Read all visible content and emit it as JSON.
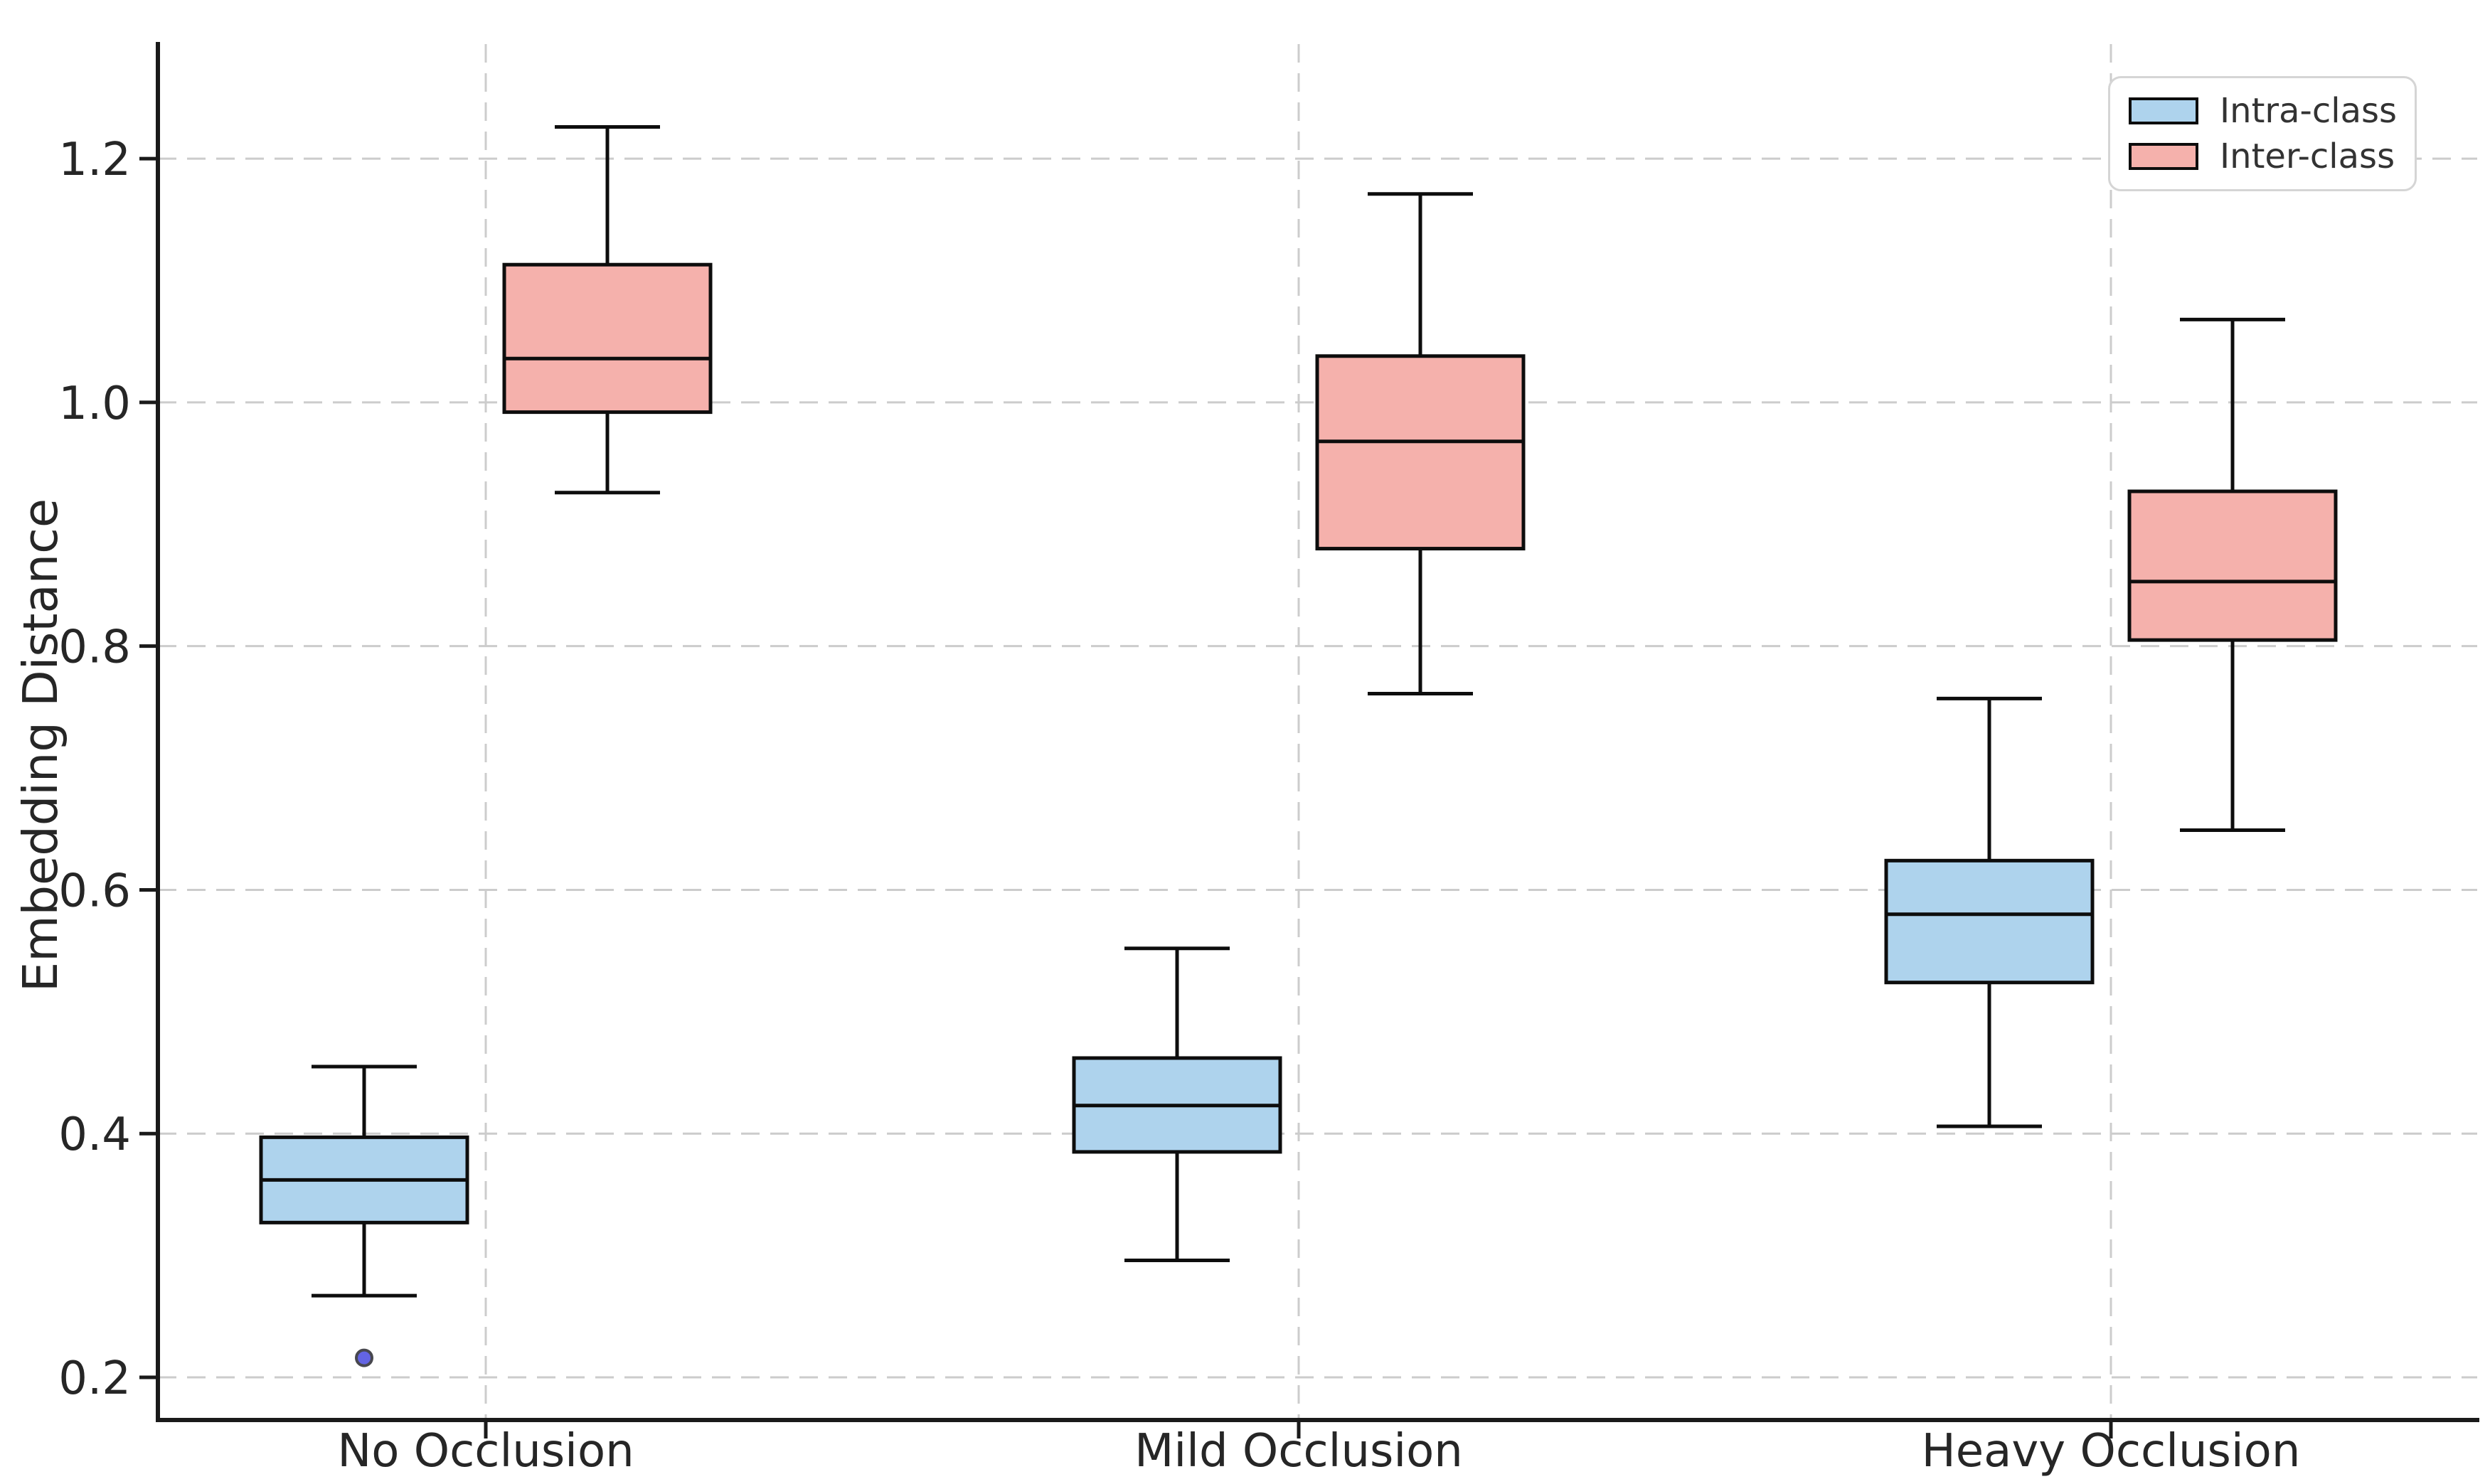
{
  "chart_data": {
    "type": "boxplot",
    "title": "",
    "xlabel": "",
    "ylabel": "Embedding Distance",
    "categories": [
      "No Occlusion",
      "Mild Occlusion",
      "Heavy Occlusion"
    ],
    "yticks": [
      0.2,
      0.4,
      0.6,
      0.8,
      1.0,
      1.2
    ],
    "ylim": [
      0.165,
      1.294
    ],
    "grid": true,
    "legend_position": "upper right",
    "series": [
      {
        "name": "Intra-class",
        "fill_color": "#AED3ED",
        "boxes": [
          {
            "category": "No Occlusion",
            "whisker_low": 0.267,
            "q1": 0.327,
            "median": 0.362,
            "q3": 0.397,
            "whisker_high": 0.455,
            "outliers": [
              0.216
            ]
          },
          {
            "category": "Mild Occlusion",
            "whisker_low": 0.296,
            "q1": 0.385,
            "median": 0.423,
            "q3": 0.462,
            "whisker_high": 0.552,
            "outliers": []
          },
          {
            "category": "Heavy Occlusion",
            "whisker_low": 0.406,
            "q1": 0.524,
            "median": 0.58,
            "q3": 0.624,
            "whisker_high": 0.757,
            "outliers": []
          }
        ]
      },
      {
        "name": "Inter-class",
        "fill_color": "#F5B1AC",
        "boxes": [
          {
            "category": "No Occlusion",
            "whisker_low": 0.926,
            "q1": 0.992,
            "median": 1.036,
            "q3": 1.113,
            "whisker_high": 1.226,
            "outliers": []
          },
          {
            "category": "Mild Occlusion",
            "whisker_low": 0.761,
            "q1": 0.88,
            "median": 0.968,
            "q3": 1.038,
            "whisker_high": 1.171,
            "outliers": []
          },
          {
            "category": "Heavy Occlusion",
            "whisker_low": 0.649,
            "q1": 0.805,
            "median": 0.853,
            "q3": 0.927,
            "whisker_high": 1.068,
            "outliers": []
          }
        ]
      }
    ],
    "colors": {
      "intra_fill": "#AED3ED",
      "inter_fill": "#F5B1AC",
      "box_edge": "#0d0d0d",
      "grid": "#cccccc",
      "axis": "#1a1a1a",
      "tick_text": "#262626",
      "outlier_fill": "#5B5CE2",
      "outlier_edge": "#3F3F46",
      "legend_border": "#d5d5d5",
      "legend_text": "#333333"
    }
  }
}
